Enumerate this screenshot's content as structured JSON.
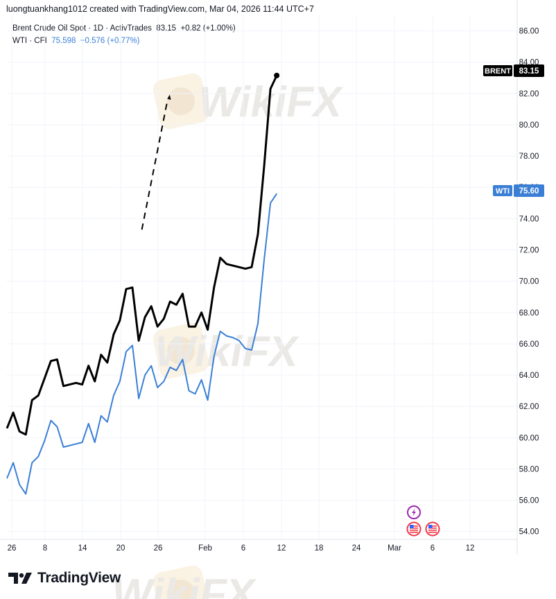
{
  "header": {
    "credit": "luongtuankhang1012 created with TradingView.com, Mar 04, 2026 11:44 UTC+7"
  },
  "legend": {
    "brent": {
      "symbol": "Brent Crude Oil Spot · 1D · ActivTrades",
      "price": "83.15",
      "change": "+0.82 (+1.00%)"
    },
    "wti": {
      "symbol": "WTI · CFI",
      "price": "75.598",
      "change": "+0.576 (+0.77%)"
    }
  },
  "badges": {
    "brent_label": "BRENT",
    "brent_value": "83.15",
    "wti_label": "WTI",
    "wti_value": "75.60"
  },
  "branding": {
    "logo_text": "TradingView",
    "watermark_text": "WikiFX"
  },
  "colors": {
    "brent": "#000000",
    "wti": "#3a7fd5",
    "grid": "#f0f3fa",
    "watermark": "#d9d4cf"
  },
  "event_icons": [
    "lightning-icon",
    "us-flag-icon",
    "us-flag-icon"
  ],
  "chart_data": {
    "type": "line",
    "title": "",
    "xlabel": "",
    "ylabel": "",
    "x_tick_labels": [
      "26",
      "8",
      "14",
      "20",
      "26",
      "Feb",
      "6",
      "12",
      "18",
      "24",
      "Mar",
      "6",
      "12"
    ],
    "ylim": [
      53.5,
      87
    ],
    "y_ticks": [
      "86.00",
      "84.00",
      "82.00",
      "80.00",
      "78.00",
      "76.00",
      "74.00",
      "72.00",
      "70.00",
      "68.00",
      "66.00",
      "64.00",
      "62.00",
      "60.00",
      "58.00",
      "56.00",
      "54.00"
    ],
    "grid": true,
    "series": [
      {
        "name": "BRENT",
        "values": [
          60.6,
          61.6,
          60.4,
          60.2,
          62.4,
          62.7,
          63.8,
          64.9,
          65.0,
          63.3,
          63.4,
          63.5,
          63.4,
          64.6,
          63.6,
          65.3,
          64.8,
          66.6,
          67.5,
          69.5,
          69.6,
          66.2,
          67.7,
          68.4,
          67.1,
          67.6,
          68.7,
          68.5,
          69.2,
          67.1,
          67.1,
          68.0,
          66.9,
          69.6,
          71.5,
          71.1,
          71.0,
          70.9,
          70.8,
          70.9,
          73.0,
          77.4,
          82.3,
          83.15
        ]
      },
      {
        "name": "WTI",
        "values": [
          57.4,
          58.4,
          57.0,
          56.4,
          58.4,
          58.8,
          59.8,
          61.1,
          60.7,
          59.4,
          59.5,
          59.6,
          59.7,
          60.9,
          59.7,
          61.4,
          61.0,
          62.7,
          63.6,
          65.5,
          65.9,
          62.5,
          64.0,
          64.6,
          63.2,
          63.6,
          64.5,
          64.3,
          65.0,
          63.0,
          62.8,
          63.7,
          62.4,
          65.2,
          66.8,
          66.5,
          66.4,
          66.2,
          65.7,
          65.6,
          67.3,
          71.4,
          75.0,
          75.598
        ]
      }
    ],
    "annotation_dashed": {
      "values": [
        [
          21.5,
          73.3
        ],
        [
          25.6,
          81.6
        ],
        [
          25.9,
          81.8
        ],
        [
          26.2,
          81.3
        ]
      ]
    }
  }
}
